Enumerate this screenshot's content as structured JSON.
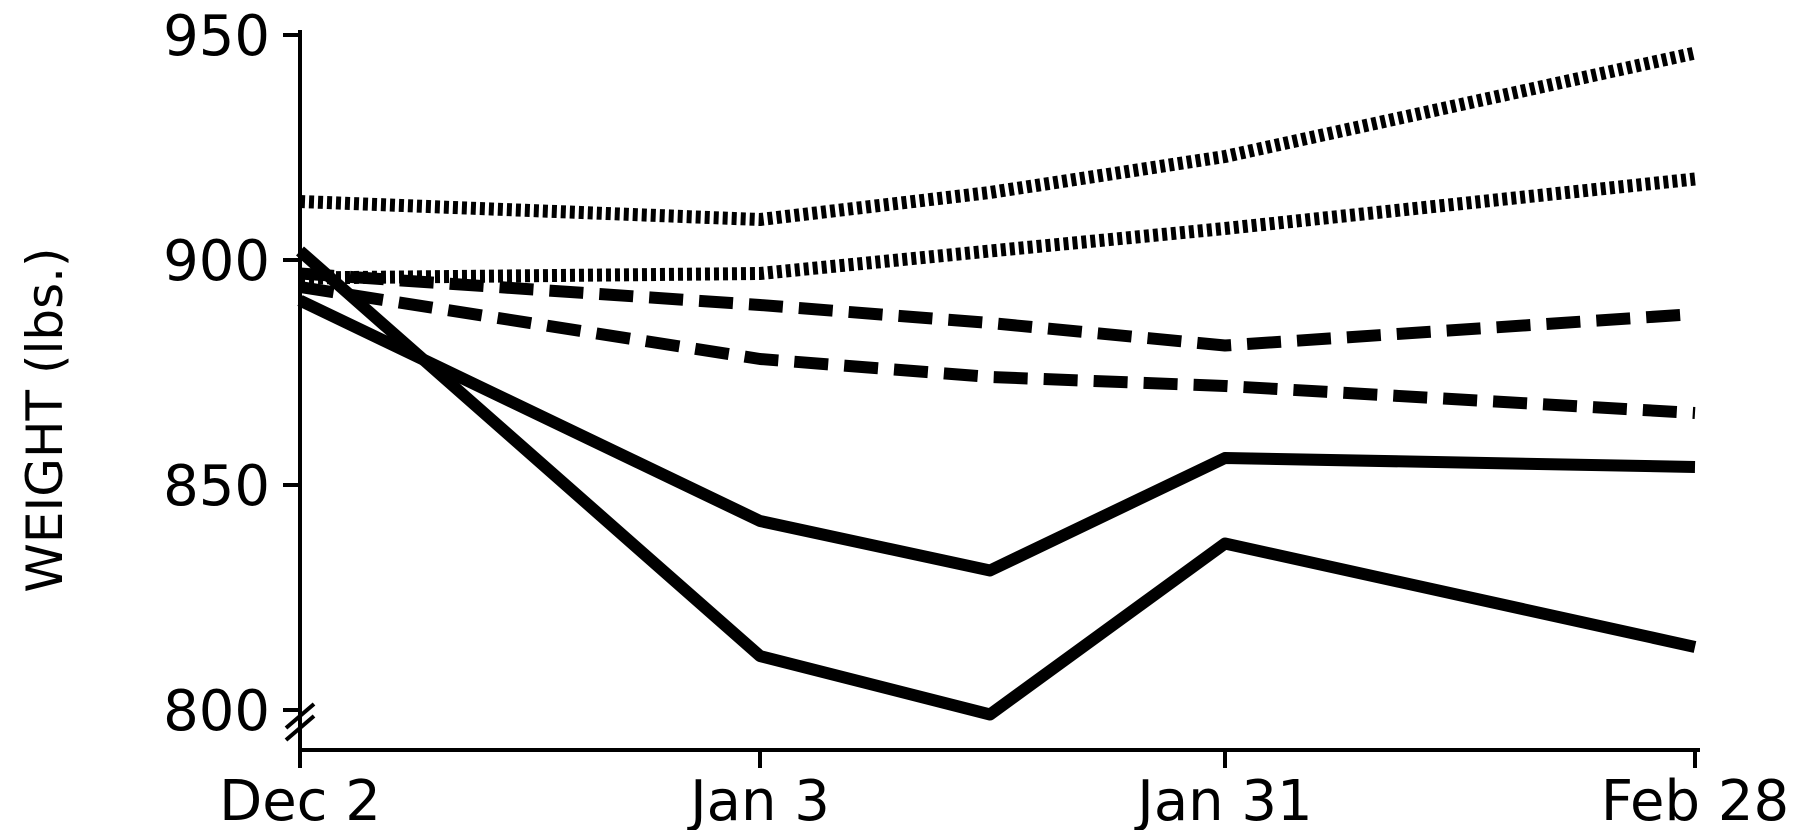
{
  "chart_data": {
    "type": "line",
    "title": "",
    "xlabel": "",
    "ylabel": "WEIGHT (lbs.)",
    "ylim": [
      800,
      950
    ],
    "yticks": [
      "950",
      "900",
      "850",
      "800"
    ],
    "xticks": [
      "Dec 2",
      "Jan 3",
      "Jan 31",
      "Feb 28"
    ],
    "x_dates": [
      "Dec 2",
      "Jan 3",
      "Jan 18",
      "Jan 31",
      "Feb 28"
    ],
    "legend": "none",
    "grid": false,
    "y_axis_break": true,
    "series": [
      {
        "style": "dotted",
        "values": [
          913,
          909,
          915,
          923,
          946
        ]
      },
      {
        "style": "dotted",
        "values": [
          896,
          897,
          902,
          907,
          918
        ]
      },
      {
        "style": "dashed",
        "values": [
          897,
          890,
          886,
          881,
          888
        ]
      },
      {
        "style": "dashed",
        "values": [
          894,
          878,
          874,
          872,
          866
        ]
      },
      {
        "style": "solid",
        "values": [
          891,
          842,
          831,
          856,
          854
        ]
      },
      {
        "style": "solid",
        "values": [
          902,
          812,
          799,
          837,
          814
        ]
      }
    ]
  }
}
